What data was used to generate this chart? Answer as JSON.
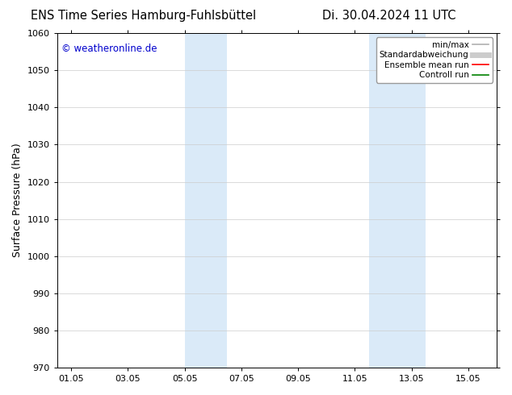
{
  "title_left": "ENS Time Series Hamburg-Fuhlsbüttel",
  "title_right": "Di. 30.04.2024 11 UTC",
  "ylabel": "Surface Pressure (hPa)",
  "ylim": [
    970,
    1060
  ],
  "yticks": [
    970,
    980,
    990,
    1000,
    1010,
    1020,
    1030,
    1040,
    1050,
    1060
  ],
  "xtick_labels": [
    "01.05",
    "03.05",
    "05.05",
    "07.05",
    "09.05",
    "11.05",
    "13.05",
    "15.05"
  ],
  "xtick_positions": [
    0,
    2,
    4,
    6,
    8,
    10,
    12,
    14
  ],
  "xlim": [
    -0.5,
    15.0
  ],
  "watermark": "© weatheronline.de",
  "watermark_color": "#0000cc",
  "background_color": "#ffffff",
  "shaded_regions": [
    {
      "xstart": 4.0,
      "xend": 5.5,
      "color": "#daeaf8"
    },
    {
      "xstart": 10.5,
      "xend": 12.5,
      "color": "#daeaf8"
    }
  ],
  "legend_items": [
    {
      "label": "min/max",
      "color": "#b0b0b0",
      "lw": 1.2,
      "style": "solid"
    },
    {
      "label": "Standardabweichung",
      "color": "#cccccc",
      "lw": 5,
      "style": "solid"
    },
    {
      "label": "Ensemble mean run",
      "color": "#ff0000",
      "lw": 1.2,
      "style": "solid"
    },
    {
      "label": "Controll run",
      "color": "#008000",
      "lw": 1.2,
      "style": "solid"
    }
  ],
  "grid_color": "#cccccc",
  "grid_linewidth": 0.5,
  "axis_linewidth": 0.7,
  "font_size_title": 10.5,
  "font_size_axis": 9,
  "font_size_tick": 8,
  "font_size_legend": 7.5,
  "font_size_watermark": 8.5
}
